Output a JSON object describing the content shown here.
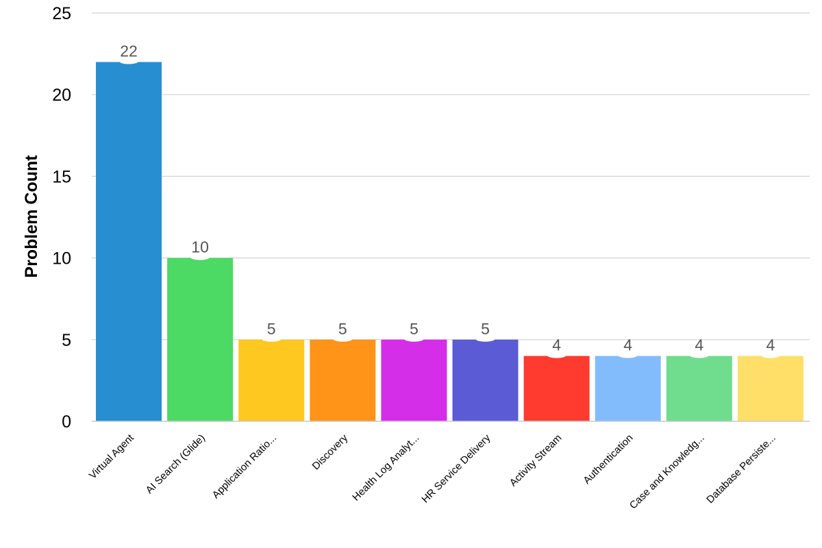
{
  "chart_data": {
    "type": "bar",
    "ylabel": "Problem Count",
    "xlabel": "",
    "ylim": [
      0,
      25
    ],
    "yticks": [
      "0",
      "5",
      "10",
      "15",
      "20",
      "25"
    ],
    "grid": true,
    "categories": [
      "Virtual Agent",
      "AI Search (Glide)",
      "Application Ratio...",
      "Discovery",
      "Health Log Analyt...",
      "HR Service Delivery",
      "Activity Stream",
      "Authentication",
      "Case and Knowledg...",
      "Database Persiste..."
    ],
    "values": [
      22,
      10,
      5,
      5,
      5,
      5,
      4,
      4,
      4,
      4
    ],
    "colors": [
      "#288ed2",
      "#4cd964",
      "#ffc821",
      "#ff9419",
      "#d42ee8",
      "#5b5bd6",
      "#ff3b30",
      "#82bcfc",
      "#70dc8d",
      "#ffdf68"
    ]
  }
}
